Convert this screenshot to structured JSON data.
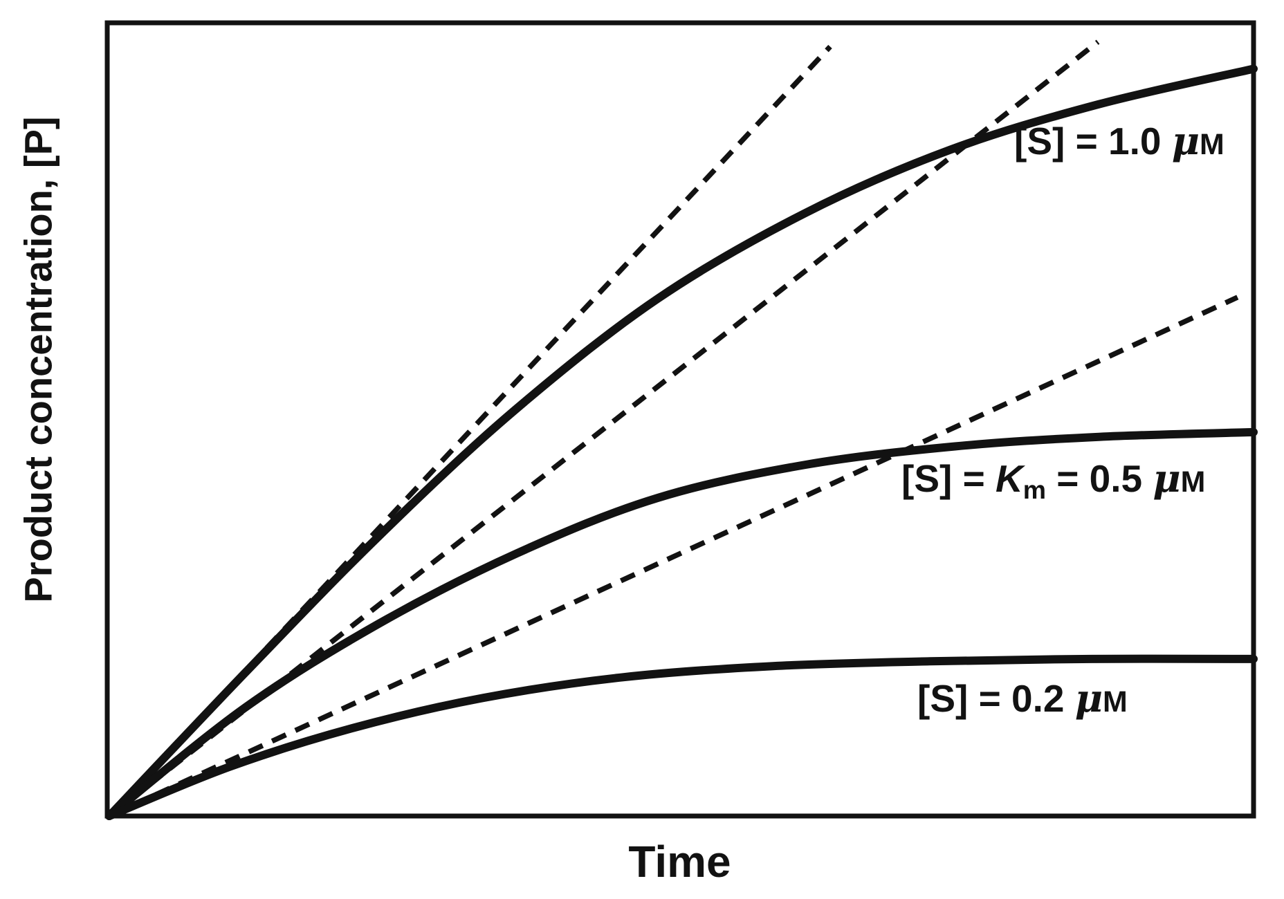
{
  "figure": {
    "y_axis_label": "Product concentration, [P]",
    "x_axis_label": "Time",
    "annotations": {
      "top": {
        "pre": "[S] = 1.0 ",
        "mu": "μ",
        "unit": "M"
      },
      "middle": {
        "pre": "[S] = ",
        "k": "K",
        "k_sub": "m",
        "mid": " = 0.5 ",
        "mu": "μ",
        "unit": "M"
      },
      "bottom": {
        "pre": "[S] = 0.2 ",
        "mu": "μ",
        "unit": "M"
      }
    },
    "colors": {
      "ink": "#121212",
      "background": "#ffffff"
    }
  },
  "chart_data": {
    "type": "line",
    "title": "",
    "xlabel": "Time",
    "ylabel": "Product concentration, [P]",
    "axis_ranges": {
      "x": [
        0,
        100
      ],
      "y": [
        0,
        100
      ]
    },
    "axis_note": "qualitative axes, no tick marks or numeric tick labels shown",
    "grid": false,
    "legend_position": "labels drawn beside curves",
    "series": [
      {
        "name": "[S] = 1.0 μM",
        "style": "solid",
        "x": [
          0,
          11.9,
          23.5,
          35.3,
          47.9,
          60.8,
          73.5,
          86.4,
          100
        ],
        "y": [
          0,
          18.1,
          35.2,
          51.0,
          65.2,
          76.0,
          84.0,
          89.7,
          94.2
        ]
      },
      {
        "name": "[S] = Km = 0.5 μM",
        "style": "solid",
        "x": [
          0,
          11.8,
          23.5,
          35.6,
          47.9,
          60.9,
          73.9,
          86.5,
          100
        ],
        "y": [
          0,
          13.6,
          24.2,
          33.1,
          40.1,
          44.3,
          46.6,
          47.8,
          48.4
        ]
      },
      {
        "name": "[S] = 0.2 μM",
        "style": "solid",
        "x": [
          0,
          10.5,
          21.3,
          32.7,
          44.9,
          58.0,
          71.7,
          85.8,
          100
        ],
        "y": [
          0,
          6.2,
          11.1,
          14.9,
          17.5,
          18.9,
          19.5,
          19.8,
          19.8
        ]
      }
    ],
    "tangents": [
      {
        "name": "initial-velocity tangent, [S] = 1.0 μM",
        "style": "dashed",
        "from": [
          0,
          0
        ],
        "to": [
          63.0,
          97.0
        ]
      },
      {
        "name": "initial-velocity tangent, [S] = 0.5 μM",
        "style": "dashed",
        "from": [
          0,
          0
        ],
        "to": [
          86.4,
          97.6
        ]
      },
      {
        "name": "initial-velocity tangent, [S] = 0.2 μM",
        "style": "dashed",
        "from": [
          0,
          0
        ],
        "to": [
          98.6,
          65.4
        ]
      }
    ]
  }
}
